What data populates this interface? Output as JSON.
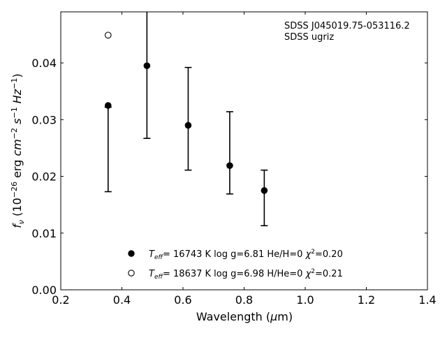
{
  "chart_data": {
    "type": "scatter",
    "title": "",
    "object_label": "SDSS J045019.75-053116.2",
    "survey_label": "SDSS ugriz",
    "xlabel": "Wavelength (μm)",
    "ylabel": "f_ν (10^-26 erg cm^-2 s^-1 Hz^-1)",
    "xlim": [
      0.2,
      1.4
    ],
    "ylim": [
      0.0,
      0.049
    ],
    "xticks": [
      "0.2",
      "0.4",
      "0.6",
      "0.8",
      "1.0",
      "1.2",
      "1.4"
    ],
    "yticks": [
      "0.00",
      "0.01",
      "0.02",
      "0.03",
      "0.04"
    ],
    "grid": false,
    "legend_position": "bottom-center",
    "observed": {
      "x": [
        0.355,
        0.482,
        0.617,
        0.753,
        0.866
      ],
      "yerr_low": [
        0.0173,
        0.0267,
        0.0211,
        0.0169,
        0.0113
      ],
      "yerr_high": [
        0.0322,
        0.05,
        0.0392,
        0.0314,
        0.0211
      ]
    },
    "series": [
      {
        "name": "T_eff= 16743 K  log g=6.81  He/H=0  χ²=0.20",
        "marker": "filled-circle",
        "x": [
          0.355,
          0.482,
          0.617,
          0.753,
          0.866
        ],
        "y": [
          0.0325,
          0.0395,
          0.029,
          0.0219,
          0.0175
        ]
      },
      {
        "name": "T_eff= 18637 K  log g=6.98  H/He=0  χ²=0.21",
        "marker": "open-circle",
        "x": [
          0.355
        ],
        "y": [
          0.0449
        ]
      }
    ]
  }
}
